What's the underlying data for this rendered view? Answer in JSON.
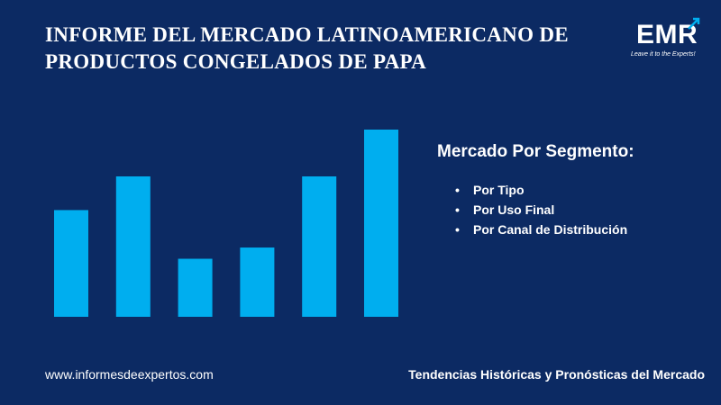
{
  "header": {
    "title_line1": "INFORME DEL MERCADO LATINOAMERICANO DE",
    "title_line2": "PRODUCTOS CONGELADOS DE PAPA"
  },
  "logo": {
    "text": "EMR",
    "tagline": "Leave it to the Experts!",
    "icon": "growth-arrow-icon"
  },
  "segment": {
    "title": "Mercado Por Segmento:",
    "items": [
      "Por Tipo",
      "Por Uso Final",
      "Por Canal de Distribución"
    ]
  },
  "footer": {
    "website": "www.informesdeexpertos.com",
    "caption": "Tendencias Históricas y Pronósticas del Mercado"
  },
  "colors": {
    "background": "#0c2a63",
    "bar": "#00aeef",
    "text": "#ffffff"
  },
  "chart_data": {
    "type": "bar",
    "categories": [
      "",
      "",
      "",
      "",
      "",
      ""
    ],
    "values": [
      57,
      75,
      31,
      37,
      75,
      100
    ],
    "title": "",
    "xlabel": "",
    "ylabel": "",
    "ylim": [
      0,
      100
    ],
    "grid": false,
    "legend": "none"
  }
}
